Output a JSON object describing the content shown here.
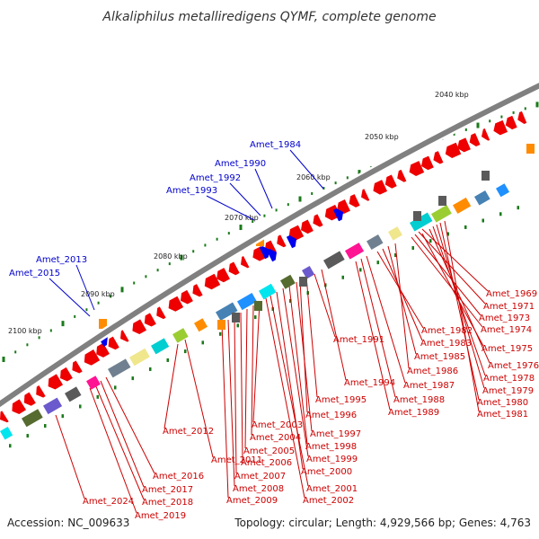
{
  "title": "Alkaliphilus metalliredigens QYMF, complete genome",
  "footer": {
    "accession": "Accession: NC_009633",
    "topology": "Topology: circular; Length: 4,929,566 bp; Genes: 4,763"
  },
  "scale_labels": [
    "2040 kbp",
    "2050 kbp",
    "2060 kbp",
    "2070 kbp",
    "2080 kbp",
    "2090 kbp",
    "2100 kbp"
  ],
  "colors": {
    "forward_label": "#0000cc",
    "reverse_label": "#cc0000",
    "backbone": "#808080",
    "forward_gene": "#0000ee",
    "reverse_gene": "#ee0000",
    "tick": "#1a7a1a"
  },
  "forward_genes": [
    "Amet_1984",
    "Amet_1990",
    "Amet_1992",
    "Amet_1993",
    "Amet_2013",
    "Amet_2015"
  ],
  "reverse_genes": [
    "Amet_1969",
    "Amet_1971",
    "Amet_1973",
    "Amet_1974",
    "Amet_1975",
    "Amet_1976",
    "Amet_1978",
    "Amet_1979",
    "Amet_1980",
    "Amet_1981",
    "Amet_1982",
    "Amet_1983",
    "Amet_1985",
    "Amet_1986",
    "Amet_1987",
    "Amet_1988",
    "Amet_1989",
    "Amet_1991",
    "Amet_1994",
    "Amet_1995",
    "Amet_1996",
    "Amet_1997",
    "Amet_1998",
    "Amet_1999",
    "Amet_2000",
    "Amet_2001",
    "Amet_2002",
    "Amet_2003",
    "Amet_2004",
    "Amet_2005",
    "Amet_2006",
    "Amet_2007",
    "Amet_2008",
    "Amet_2009",
    "Amet_2011",
    "Amet_2012",
    "Amet_2016",
    "Amet_2017",
    "Amet_2018",
    "Amet_2019",
    "Amet_2024"
  ]
}
